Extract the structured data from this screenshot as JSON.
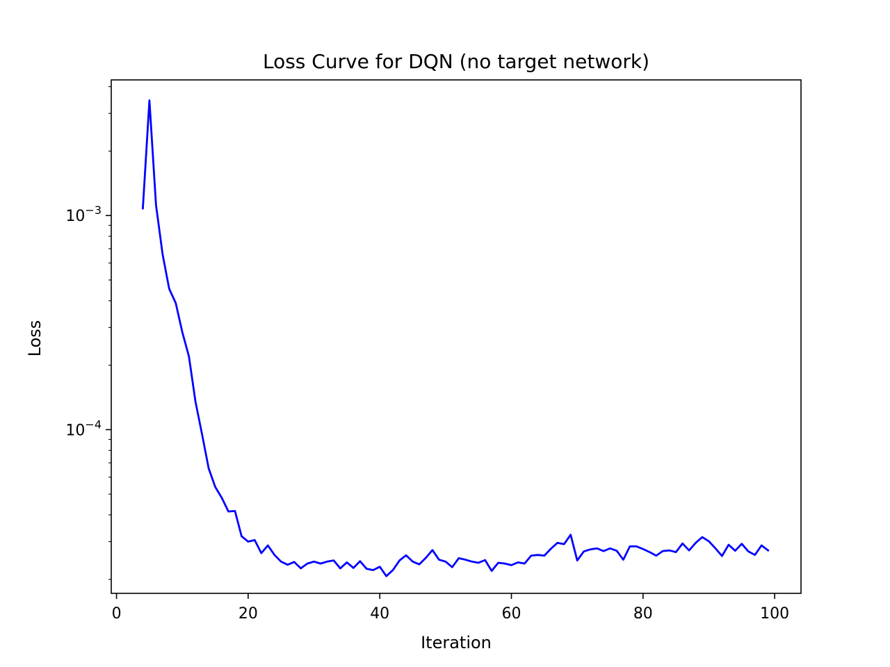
{
  "chart_data": {
    "type": "line",
    "title": "Loss Curve for DQN (no target network)",
    "xlabel": "Iteration",
    "ylabel": "Loss",
    "xlim": [
      -0.8,
      104
    ],
    "ylim": [
      1.72e-05,
      0.0043
    ],
    "yscale": "log",
    "grid": false,
    "x_ticks": [
      0,
      20,
      40,
      60,
      80,
      100
    ],
    "x_tick_labels": [
      "0",
      "20",
      "40",
      "60",
      "80",
      "100"
    ],
    "y_major_ticks": [
      {
        "value": 0.001,
        "base": "10",
        "exponent": "−3"
      },
      {
        "value": 0.0001,
        "base": "10",
        "exponent": "−4"
      }
    ],
    "series": [
      {
        "color": "#0000ff",
        "x": [
          4,
          5,
          6,
          7,
          8,
          9,
          10,
          11,
          12,
          13,
          14,
          15,
          16,
          17,
          18,
          19,
          20,
          21,
          22,
          23,
          24,
          25,
          26,
          27,
          28,
          29,
          30,
          31,
          32,
          33,
          34,
          35,
          36,
          37,
          38,
          39,
          40,
          41,
          42,
          43,
          44,
          45,
          46,
          47,
          48,
          49,
          50,
          51,
          52,
          53,
          54,
          55,
          56,
          57,
          58,
          59,
          60,
          61,
          62,
          63,
          64,
          65,
          66,
          67,
          68,
          69,
          70,
          71,
          72,
          73,
          74,
          75,
          76,
          77,
          78,
          79,
          80,
          81,
          82,
          83,
          84,
          85,
          86,
          87,
          88,
          89,
          90,
          91,
          92,
          93,
          94,
          95,
          96,
          97,
          98,
          99
        ],
        "y": [
          0.00108,
          0.00345,
          0.00112,
          0.00066,
          0.000455,
          0.00039,
          0.000285,
          0.00022,
          0.000135,
          9.5e-05,
          6.6e-05,
          5.4e-05,
          4.8e-05,
          4.15e-05,
          4.17e-05,
          3.18e-05,
          3e-05,
          3.05e-05,
          2.65e-05,
          2.88e-05,
          2.6e-05,
          2.42e-05,
          2.34e-05,
          2.41e-05,
          2.25e-05,
          2.37e-05,
          2.42e-05,
          2.37e-05,
          2.42e-05,
          2.45e-05,
          2.25e-05,
          2.4e-05,
          2.26e-05,
          2.43e-05,
          2.24e-05,
          2.21e-05,
          2.29e-05,
          2.07e-05,
          2.21e-05,
          2.45e-05,
          2.59e-05,
          2.42e-05,
          2.35e-05,
          2.52e-05,
          2.74e-05,
          2.47e-05,
          2.42e-05,
          2.28e-05,
          2.51e-05,
          2.47e-05,
          2.42e-05,
          2.39e-05,
          2.46e-05,
          2.19e-05,
          2.39e-05,
          2.37e-05,
          2.33e-05,
          2.4e-05,
          2.37e-05,
          2.58e-05,
          2.6e-05,
          2.58e-05,
          2.78e-05,
          2.96e-05,
          2.92e-05,
          3.23e-05,
          2.45e-05,
          2.7e-05,
          2.76e-05,
          2.79e-05,
          2.71e-05,
          2.79e-05,
          2.72e-05,
          2.47e-05,
          2.85e-05,
          2.85e-05,
          2.77e-05,
          2.68e-05,
          2.58e-05,
          2.71e-05,
          2.73e-05,
          2.68e-05,
          2.94e-05,
          2.73e-05,
          2.96e-05,
          3.15e-05,
          3.01e-05,
          2.79e-05,
          2.57e-05,
          2.9e-05,
          2.72e-05,
          2.93e-05,
          2.7e-05,
          2.6e-05,
          2.88e-05,
          2.73e-05
        ]
      }
    ]
  }
}
